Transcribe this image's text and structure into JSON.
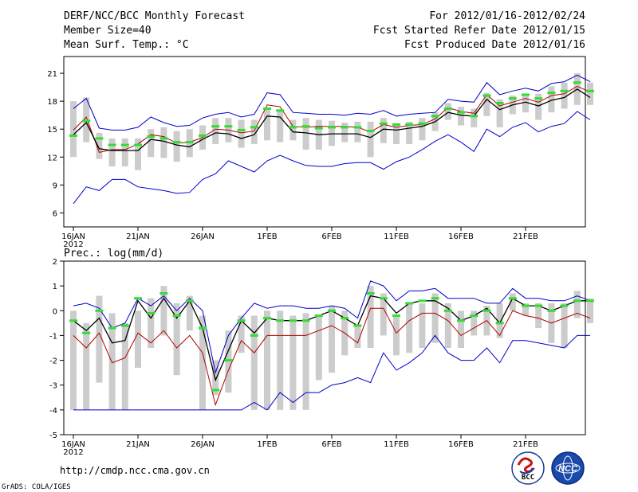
{
  "header": {
    "title": "DERF/NCC/BCC Monthly Forecast",
    "member_size": "Member Size=40",
    "variable": "Mean Surf. Temp.: °C",
    "period": "For 2012/01/16-2012/02/24",
    "start_date": "Fcst Started Refer Date 2012/01/15",
    "produced_date": "Fcst Produced Date 2012/01/16"
  },
  "footer": {
    "url": "http://cmdp.ncc.cma.gov.cn",
    "credit": "GrADS: COLA/IGES"
  },
  "logos": {
    "bcc_label": "BCC",
    "ncc_label": "NCC"
  },
  "colors": {
    "bar": "#cccccc",
    "median": "#000000",
    "mean": "#b00000",
    "max_min": "#0000cc",
    "green": "#33dd33"
  },
  "chart_data": [
    {
      "type": "line",
      "title": "Mean Surf. Temp.: °C",
      "ylim": [
        4.5,
        22.8
      ],
      "yticks": [
        6,
        9,
        12,
        15,
        18,
        21
      ],
      "x_tick_labels": [
        "16JAN",
        "21JAN",
        "26JAN",
        "1FEB",
        "6FEB",
        "11FEB",
        "16FEB",
        "21FEB"
      ],
      "x_tick_sub": "2012",
      "series": [
        {
          "name": "max",
          "values": [
            17.2,
            18.3,
            15.1,
            14.9,
            14.9,
            15.2,
            16.3,
            15.7,
            15.3,
            15.4,
            16.2,
            16.6,
            16.8,
            16.3,
            16.6,
            18.9,
            18.7,
            16.8,
            16.7,
            16.6,
            16.6,
            16.5,
            16.7,
            16.6,
            17.0,
            16.4,
            16.6,
            16.7,
            16.8,
            18.2,
            18.0,
            17.9,
            20.0,
            18.7,
            19.1,
            19.4,
            19.1,
            19.9,
            20.1,
            20.8,
            20.1
          ]
        },
        {
          "name": "mean",
          "values": [
            14.9,
            16.3,
            12.5,
            12.8,
            12.8,
            13.4,
            14.4,
            14.2,
            13.5,
            13.6,
            14.1,
            15.0,
            14.9,
            14.6,
            14.8,
            17.6,
            17.4,
            15.3,
            15.2,
            15.3,
            15.3,
            15.3,
            15.2,
            14.7,
            15.5,
            15.2,
            15.4,
            15.5,
            16.1,
            17.3,
            16.9,
            16.7,
            18.7,
            17.5,
            17.9,
            18.3,
            17.9,
            18.6,
            18.8,
            19.6,
            19.0
          ]
        },
        {
          "name": "median",
          "values": [
            14.4,
            15.7,
            12.9,
            12.7,
            12.7,
            12.7,
            13.9,
            13.7,
            13.3,
            13.1,
            13.9,
            14.6,
            14.5,
            14.0,
            14.4,
            16.4,
            16.3,
            14.7,
            14.6,
            14.4,
            14.5,
            14.5,
            14.5,
            14.1,
            15.0,
            14.9,
            15.1,
            15.3,
            15.8,
            16.8,
            16.5,
            16.4,
            18.2,
            17.1,
            17.6,
            17.9,
            17.5,
            18.1,
            18.4,
            19.3,
            18.4
          ]
        },
        {
          "name": "min",
          "values": [
            7.0,
            8.8,
            8.4,
            9.6,
            9.6,
            8.8,
            8.6,
            8.4,
            8.1,
            8.2,
            9.6,
            10.2,
            11.6,
            11.0,
            10.4,
            11.6,
            12.2,
            11.6,
            11.1,
            11.0,
            11.0,
            11.3,
            11.4,
            11.4,
            10.7,
            11.5,
            12.0,
            12.8,
            13.7,
            14.4,
            13.6,
            12.6,
            15.0,
            14.2,
            15.2,
            15.7,
            14.7,
            15.3,
            15.6,
            16.9,
            16.0
          ]
        }
      ],
      "green_marks": [
        14.3,
        15.9,
        14.0,
        13.3,
        13.3,
        13.3,
        14.2,
        14.0,
        13.6,
        13.6,
        14.3,
        15.3,
        15.3,
        14.9,
        15.2,
        17.2,
        17.0,
        15.2,
        15.3,
        15.1,
        15.2,
        15.2,
        15.2,
        14.8,
        15.6,
        15.5,
        15.5,
        15.6,
        16.4,
        17.2,
        16.8,
        16.4,
        18.6,
        17.8,
        18.3,
        18.7,
        18.3,
        18.9,
        19.1,
        20.0,
        19.1
      ],
      "bars": [
        [
          12.0,
          18.0
        ],
        [
          13.6,
          18.4
        ],
        [
          11.8,
          14.6
        ],
        [
          11.0,
          14.0
        ],
        [
          11.0,
          14.0
        ],
        [
          10.6,
          14.0
        ],
        [
          12.0,
          15.0
        ],
        [
          11.9,
          15.2
        ],
        [
          11.5,
          14.8
        ],
        [
          12.0,
          15.0
        ],
        [
          12.8,
          15.4
        ],
        [
          13.4,
          16.2
        ],
        [
          13.6,
          16.2
        ],
        [
          13.0,
          16.0
        ],
        [
          13.4,
          16.0
        ],
        [
          13.8,
          17.2
        ],
        [
          13.6,
          17.0
        ],
        [
          13.8,
          16.0
        ],
        [
          12.8,
          16.2
        ],
        [
          12.8,
          16.0
        ],
        [
          13.2,
          15.9
        ],
        [
          13.6,
          15.7
        ],
        [
          13.6,
          15.8
        ],
        [
          12.0,
          15.8
        ],
        [
          13.5,
          16.2
        ],
        [
          13.4,
          15.6
        ],
        [
          13.4,
          15.8
        ],
        [
          13.8,
          16.2
        ],
        [
          14.8,
          16.8
        ],
        [
          16.0,
          17.8
        ],
        [
          15.4,
          17.4
        ],
        [
          15.2,
          17.2
        ],
        [
          16.4,
          18.9
        ],
        [
          15.2,
          18.2
        ],
        [
          16.6,
          18.6
        ],
        [
          16.8,
          18.8
        ],
        [
          16.0,
          18.8
        ],
        [
          16.8,
          19.6
        ],
        [
          17.2,
          20.0
        ],
        [
          17.6,
          21.0
        ],
        [
          17.6,
          20.0
        ]
      ]
    },
    {
      "type": "line",
      "title": "Prec.: log(mm/d)",
      "ylim": [
        -5,
        2
      ],
      "yticks": [
        -5,
        -4,
        -3,
        -2,
        -1,
        0,
        1,
        2
      ],
      "x_tick_labels": [
        "16JAN",
        "21JAN",
        "26JAN",
        "1FEB",
        "6FEB",
        "11FEB",
        "16FEB",
        "21FEB"
      ],
      "x_tick_sub": "2012",
      "series": [
        {
          "name": "max",
          "values": [
            0.2,
            0.3,
            0.1,
            -0.7,
            -0.5,
            0.5,
            0.2,
            0.6,
            0.0,
            0.5,
            0.0,
            -2.5,
            -1.0,
            -0.3,
            0.3,
            0.1,
            0.2,
            0.2,
            0.1,
            0.1,
            0.2,
            0.1,
            -0.3,
            1.2,
            1.0,
            0.4,
            0.8,
            0.8,
            0.9,
            0.5,
            0.5,
            0.5,
            0.3,
            0.3,
            0.9,
            0.5,
            0.5,
            0.4,
            0.4,
            0.6,
            0.4
          ]
        },
        {
          "name": "median",
          "values": [
            -0.4,
            -0.8,
            -0.3,
            -1.3,
            -1.2,
            0.4,
            -0.3,
            0.5,
            -0.3,
            0.4,
            -0.7,
            -2.8,
            -1.6,
            -0.4,
            -0.9,
            -0.3,
            -0.4,
            -0.4,
            -0.4,
            -0.2,
            0.0,
            -0.3,
            -0.6,
            0.6,
            0.5,
            -0.1,
            0.3,
            0.4,
            0.4,
            0.1,
            -0.4,
            -0.2,
            0.1,
            -0.5,
            0.5,
            0.2,
            0.2,
            0.0,
            0.2,
            0.4,
            0.4
          ]
        },
        {
          "name": "mean",
          "values": [
            -1.0,
            -1.5,
            -0.9,
            -2.1,
            -1.9,
            -0.9,
            -1.3,
            -0.8,
            -1.5,
            -1.0,
            -1.7,
            -3.8,
            -2.4,
            -1.2,
            -1.7,
            -1.0,
            -1.0,
            -1.0,
            -1.0,
            -0.8,
            -0.6,
            -0.9,
            -1.3,
            0.1,
            0.1,
            -0.9,
            -0.4,
            -0.1,
            -0.1,
            -0.4,
            -1.0,
            -0.7,
            -0.4,
            -1.0,
            0.0,
            -0.2,
            -0.3,
            -0.5,
            -0.3,
            -0.1,
            -0.3
          ]
        },
        {
          "name": "min",
          "values": [
            -4.0,
            -4.0,
            -4.0,
            -4.0,
            -4.0,
            -4.0,
            -4.0,
            -4.0,
            -4.0,
            -4.0,
            -4.0,
            -4.0,
            -4.0,
            -4.0,
            -3.7,
            -4.0,
            -3.3,
            -3.7,
            -3.3,
            -3.3,
            -3.0,
            -2.9,
            -2.7,
            -2.9,
            -1.7,
            -2.4,
            -2.1,
            -1.7,
            -1.0,
            -1.7,
            -2.0,
            -2.0,
            -1.5,
            -2.1,
            -1.2,
            -1.2,
            -1.3,
            -1.4,
            -1.5,
            -1.0,
            -1.0
          ]
        },
        {
          "name": "green",
          "values": [
            -0.4,
            -0.9,
            0.0,
            -0.7,
            -0.6,
            0.5,
            -0.1,
            0.7,
            -0.2,
            0.4,
            -0.7,
            -3.2,
            -2.0,
            -0.4,
            -1.0,
            -0.3,
            -0.4,
            -0.4,
            -0.4,
            -0.2,
            0.0,
            -0.3,
            -0.6,
            0.7,
            0.5,
            -0.2,
            0.3,
            0.4,
            0.5,
            0.0,
            -0.4,
            -0.2,
            0.0,
            -0.5,
            0.5,
            0.2,
            0.2,
            0.0,
            0.2,
            0.4,
            0.4
          ]
        }
      ],
      "bars": [
        [
          -4.0,
          0.0
        ],
        [
          -4.0,
          -0.5
        ],
        [
          -2.9,
          0.6
        ],
        [
          -4.0,
          -0.1
        ],
        [
          -4.0,
          -0.5
        ],
        [
          -2.3,
          0.0
        ],
        [
          -1.5,
          0.5
        ],
        [
          -1.0,
          1.0
        ],
        [
          -2.6,
          0.3
        ],
        [
          -0.8,
          0.6
        ],
        [
          -4.0,
          -0.2
        ],
        [
          -3.4,
          -2.0
        ],
        [
          -3.3,
          -0.8
        ],
        [
          -1.7,
          -0.2
        ],
        [
          -4.0,
          -0.2
        ],
        [
          -4.0,
          0.0
        ],
        [
          -4.0,
          0.0
        ],
        [
          -4.0,
          -0.2
        ],
        [
          -4.0,
          -0.1
        ],
        [
          -2.8,
          -0.2
        ],
        [
          -2.5,
          0.2
        ],
        [
          -1.8,
          0.0
        ],
        [
          -1.5,
          -0.6
        ],
        [
          -1.5,
          1.0
        ],
        [
          -1.0,
          0.7
        ],
        [
          -1.8,
          -0.2
        ],
        [
          -1.7,
          0.3
        ],
        [
          -1.5,
          0.3
        ],
        [
          -1.3,
          0.7
        ],
        [
          -1.5,
          0.3
        ],
        [
          -1.5,
          0.0
        ],
        [
          -1.0,
          0.0
        ],
        [
          -1.0,
          0.2
        ],
        [
          -1.1,
          0.3
        ],
        [
          0.0,
          0.7
        ],
        [
          -0.2,
          0.3
        ],
        [
          -0.7,
          0.3
        ],
        [
          -1.3,
          0.3
        ],
        [
          -1.5,
          0.3
        ],
        [
          -0.3,
          0.8
        ],
        [
          -0.5,
          0.5
        ]
      ]
    }
  ]
}
